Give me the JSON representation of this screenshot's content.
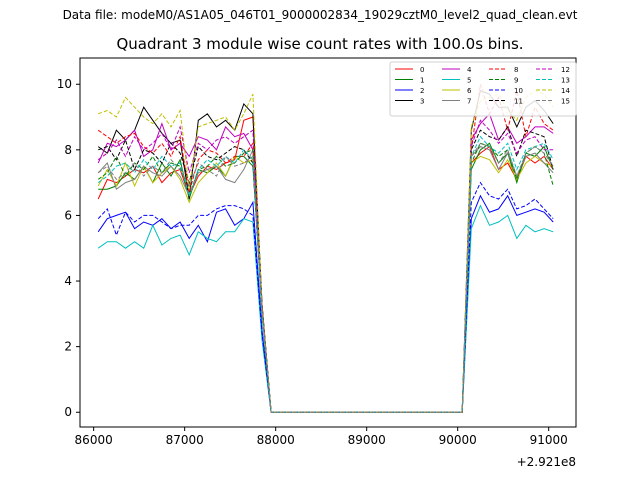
{
  "suptitle": "Data file: modeM0/AS1A05_046T01_9000002834_19029cztM0_level2_quad_clean.evt",
  "chart_data": {
    "type": "line",
    "title": "Quadrant 3 module wise count rates with 100.0s bins.",
    "xlabel": "",
    "ylabel": "",
    "x_offset_label": "+2.921e8",
    "xlim": [
      85850,
      91300
    ],
    "ylim": [
      -0.45,
      10.8
    ],
    "x_ticks": [
      86000,
      87000,
      88000,
      89000,
      90000,
      91000
    ],
    "x_tick_labels": [
      "86000",
      "87000",
      "88000",
      "89000",
      "90000",
      "91000"
    ],
    "y_ticks": [
      0,
      2,
      4,
      6,
      8,
      10
    ],
    "y_tick_labels": [
      "0",
      "2",
      "4",
      "6",
      "8",
      "10"
    ],
    "grid": false,
    "legend_position": "top-right",
    "x": [
      86050,
      86150,
      86250,
      86350,
      86450,
      86550,
      86650,
      86750,
      86850,
      86950,
      87050,
      87150,
      87250,
      87350,
      87450,
      87550,
      87650,
      87750,
      87850,
      87950,
      88050,
      88150,
      88250,
      88350,
      88450,
      88550,
      88650,
      88750,
      88850,
      88950,
      89050,
      89150,
      89250,
      89350,
      89450,
      89550,
      89650,
      89750,
      89850,
      89950,
      90050,
      90150,
      90250,
      90350,
      90450,
      90550,
      90650,
      90750,
      90850,
      90950,
      91050
    ],
    "series": [
      {
        "name": "0",
        "color": "#ff0000",
        "dashed": false,
        "values": [
          6.5,
          7.1,
          7.0,
          7.2,
          7.4,
          7.3,
          7.5,
          7.0,
          7.3,
          7.4,
          6.6,
          7.2,
          7.5,
          7.4,
          7.6,
          7.7,
          8.9,
          9.0,
          3.3,
          0.0,
          0.0,
          0.0,
          0.0,
          0.0,
          0.0,
          0.0,
          0.0,
          0.0,
          0.0,
          0.0,
          0.0,
          0.0,
          0.0,
          0.0,
          0.0,
          0.0,
          0.0,
          0.0,
          0.0,
          0.0,
          0.0,
          7.6,
          7.9,
          8.1,
          7.4,
          7.6,
          7.1,
          7.8,
          7.6,
          7.8,
          7.4
        ]
      },
      {
        "name": "1",
        "color": "#008000",
        "dashed": false,
        "values": [
          6.8,
          6.8,
          6.9,
          7.3,
          7.1,
          7.5,
          7.0,
          7.6,
          7.2,
          7.7,
          6.5,
          7.4,
          7.3,
          7.5,
          7.2,
          7.8,
          7.8,
          7.5,
          3.2,
          0.0,
          0.0,
          0.0,
          0.0,
          0.0,
          0.0,
          0.0,
          0.0,
          0.0,
          0.0,
          0.0,
          0.0,
          0.0,
          0.0,
          0.0,
          0.0,
          0.0,
          0.0,
          0.0,
          0.0,
          0.0,
          0.0,
          7.4,
          8.0,
          8.2,
          7.6,
          7.9,
          7.0,
          7.9,
          7.8,
          8.1,
          7.4
        ]
      },
      {
        "name": "2",
        "color": "#0000ff",
        "dashed": false,
        "values": [
          5.5,
          5.9,
          6.0,
          6.1,
          5.6,
          5.8,
          5.7,
          5.9,
          5.6,
          5.8,
          5.3,
          5.7,
          5.2,
          6.1,
          6.2,
          5.7,
          5.9,
          6.4,
          2.5,
          0.0,
          0.0,
          0.0,
          0.0,
          0.0,
          0.0,
          0.0,
          0.0,
          0.0,
          0.0,
          0.0,
          0.0,
          0.0,
          0.0,
          0.0,
          0.0,
          0.0,
          0.0,
          0.0,
          0.0,
          0.0,
          0.0,
          5.9,
          6.6,
          6.1,
          6.2,
          6.6,
          6.0,
          6.1,
          6.2,
          6.1,
          5.8
        ]
      },
      {
        "name": "3",
        "color": "#000000",
        "dashed": false,
        "values": [
          8.1,
          7.9,
          8.6,
          8.3,
          8.6,
          9.3,
          8.9,
          8.5,
          8.2,
          8.3,
          6.5,
          8.9,
          9.1,
          8.7,
          8.9,
          8.6,
          9.4,
          9.1,
          3.3,
          0.0,
          0.0,
          0.0,
          0.0,
          0.0,
          0.0,
          0.0,
          0.0,
          0.0,
          0.0,
          0.0,
          0.0,
          0.0,
          0.0,
          0.0,
          0.0,
          0.0,
          0.0,
          0.0,
          0.0,
          0.0,
          0.0,
          8.6,
          9.8,
          9.7,
          9.3,
          9.3,
          8.7,
          9.3,
          9.5,
          9.2,
          8.8
        ]
      },
      {
        "name": "4",
        "color": "#bf00bf",
        "dashed": false,
        "values": [
          7.6,
          8.2,
          8.1,
          8.3,
          8.6,
          7.8,
          8.0,
          8.8,
          8.0,
          8.2,
          7.8,
          8.4,
          8.3,
          8.0,
          8.7,
          8.4,
          8.5,
          8.0,
          3.1,
          0.0,
          0.0,
          0.0,
          0.0,
          0.0,
          0.0,
          0.0,
          0.0,
          0.0,
          0.0,
          0.0,
          0.0,
          0.0,
          0.0,
          0.0,
          0.0,
          0.0,
          0.0,
          0.0,
          0.0,
          0.0,
          0.0,
          8.3,
          8.8,
          9.1,
          8.3,
          8.7,
          8.2,
          8.4,
          8.7,
          8.7,
          8.5
        ]
      },
      {
        "name": "5",
        "color": "#00bfbf",
        "dashed": false,
        "values": [
          5.0,
          5.2,
          5.2,
          5.0,
          5.2,
          5.0,
          5.7,
          5.1,
          5.3,
          5.4,
          4.8,
          5.5,
          5.3,
          5.2,
          5.5,
          5.5,
          5.9,
          5.8,
          2.2,
          0.0,
          0.0,
          0.0,
          0.0,
          0.0,
          0.0,
          0.0,
          0.0,
          0.0,
          0.0,
          0.0,
          0.0,
          0.0,
          0.0,
          0.0,
          0.0,
          0.0,
          0.0,
          0.0,
          0.0,
          0.0,
          0.0,
          5.6,
          6.3,
          5.7,
          5.8,
          6.0,
          5.3,
          5.7,
          5.5,
          5.6,
          5.5
        ]
      },
      {
        "name": "6",
        "color": "#bfbf00",
        "dashed": false,
        "values": [
          6.9,
          7.4,
          6.9,
          7.6,
          6.9,
          7.5,
          7.0,
          7.3,
          7.5,
          7.1,
          6.4,
          7.0,
          7.3,
          7.6,
          7.2,
          7.8,
          7.6,
          7.7,
          3.0,
          0.0,
          0.0,
          0.0,
          0.0,
          0.0,
          0.0,
          0.0,
          0.0,
          0.0,
          0.0,
          0.0,
          0.0,
          0.0,
          0.0,
          0.0,
          0.0,
          0.0,
          0.0,
          0.0,
          0.0,
          0.0,
          0.0,
          7.6,
          7.8,
          7.7,
          7.3,
          7.7,
          7.1,
          7.6,
          7.8,
          7.6,
          7.5
        ]
      },
      {
        "name": "7",
        "color": "#808080",
        "dashed": false,
        "values": [
          7.3,
          7.6,
          6.8,
          7.0,
          7.1,
          7.5,
          7.3,
          7.2,
          7.5,
          7.2,
          6.6,
          7.3,
          7.4,
          7.5,
          7.1,
          7.0,
          7.4,
          8.0,
          3.1,
          0.0,
          0.0,
          0.0,
          0.0,
          0.0,
          0.0,
          0.0,
          0.0,
          0.0,
          0.0,
          0.0,
          0.0,
          0.0,
          0.0,
          0.0,
          0.0,
          0.0,
          0.0,
          0.0,
          0.0,
          0.0,
          0.0,
          7.8,
          8.1,
          8.0,
          7.4,
          7.9,
          7.2,
          7.8,
          7.9,
          7.6,
          7.3
        ]
      },
      {
        "name": "8",
        "color": "#ff0000",
        "dashed": true,
        "values": [
          8.6,
          8.4,
          8.2,
          8.4,
          8.5,
          8.1,
          7.9,
          8.2,
          7.8,
          8.4,
          6.7,
          7.7,
          8.0,
          7.9,
          7.6,
          7.8,
          7.8,
          8.2,
          3.2,
          0.0,
          0.0,
          0.0,
          0.0,
          0.0,
          0.0,
          0.0,
          0.0,
          0.0,
          0.0,
          0.0,
          0.0,
          0.0,
          0.0,
          0.0,
          0.0,
          0.0,
          0.0,
          0.0,
          0.0,
          0.0,
          0.0,
          8.0,
          10.0,
          9.1,
          9.6,
          8.6,
          9.8,
          8.4,
          9.3,
          8.8,
          8.6
        ]
      },
      {
        "name": "9",
        "color": "#008000",
        "dashed": true,
        "values": [
          7.1,
          7.3,
          7.8,
          7.2,
          7.6,
          7.4,
          7.8,
          7.3,
          7.6,
          7.5,
          6.6,
          7.4,
          7.5,
          7.8,
          7.5,
          7.6,
          7.9,
          8.0,
          3.2,
          0.0,
          0.0,
          0.0,
          0.0,
          0.0,
          0.0,
          0.0,
          0.0,
          0.0,
          0.0,
          0.0,
          0.0,
          0.0,
          0.0,
          0.0,
          0.0,
          0.0,
          0.0,
          0.0,
          0.0,
          0.0,
          0.0,
          7.6,
          8.2,
          8.1,
          7.8,
          8.0,
          7.1,
          7.9,
          8.1,
          7.9,
          6.9
        ]
      },
      {
        "name": "10",
        "color": "#0000ff",
        "dashed": true,
        "values": [
          5.9,
          6.2,
          5.4,
          6.1,
          5.8,
          6.0,
          6.0,
          5.8,
          5.6,
          5.7,
          5.7,
          6.0,
          6.0,
          6.2,
          6.3,
          6.3,
          6.2,
          6.0,
          2.4,
          0.0,
          0.0,
          0.0,
          0.0,
          0.0,
          0.0,
          0.0,
          0.0,
          0.0,
          0.0,
          0.0,
          0.0,
          0.0,
          0.0,
          0.0,
          0.0,
          0.0,
          0.0,
          0.0,
          0.0,
          0.0,
          0.0,
          6.4,
          7.0,
          6.6,
          6.5,
          6.8,
          6.2,
          6.3,
          6.5,
          6.2,
          5.9
        ]
      },
      {
        "name": "11",
        "color": "#000000",
        "dashed": true,
        "values": [
          8.0,
          8.1,
          7.7,
          8.3,
          7.4,
          8.0,
          7.9,
          7.6,
          8.2,
          7.9,
          7.0,
          8.1,
          7.8,
          7.7,
          7.9,
          8.1,
          8.0,
          7.6,
          3.0,
          0.0,
          0.0,
          0.0,
          0.0,
          0.0,
          0.0,
          0.0,
          0.0,
          0.0,
          0.0,
          0.0,
          0.0,
          0.0,
          0.0,
          0.0,
          0.0,
          0.0,
          0.0,
          0.0,
          0.0,
          0.0,
          0.0,
          8.0,
          8.6,
          8.4,
          8.3,
          8.7,
          7.8,
          8.6,
          8.5,
          8.4,
          7.4
        ]
      },
      {
        "name": "12",
        "color": "#bf00bf",
        "dashed": true,
        "values": [
          7.7,
          7.9,
          8.3,
          7.8,
          8.4,
          8.0,
          8.2,
          8.5,
          8.0,
          8.7,
          7.3,
          8.2,
          8.0,
          8.3,
          8.4,
          8.2,
          8.4,
          8.6,
          3.2,
          0.0,
          0.0,
          0.0,
          0.0,
          0.0,
          0.0,
          0.0,
          0.0,
          0.0,
          0.0,
          0.0,
          0.0,
          0.0,
          0.0,
          0.0,
          0.0,
          0.0,
          0.0,
          0.0,
          0.0,
          0.0,
          0.0,
          8.1,
          8.9,
          8.6,
          8.2,
          8.5,
          7.9,
          8.3,
          8.4,
          8.0,
          8.0
        ]
      },
      {
        "name": "13",
        "color": "#00bfbf",
        "dashed": true,
        "values": [
          7.0,
          7.2,
          7.5,
          7.6,
          7.3,
          7.7,
          7.4,
          7.8,
          7.5,
          7.6,
          6.6,
          7.4,
          7.7,
          7.5,
          7.8,
          7.6,
          8.0,
          7.7,
          3.0,
          0.0,
          0.0,
          0.0,
          0.0,
          0.0,
          0.0,
          0.0,
          0.0,
          0.0,
          0.0,
          0.0,
          0.0,
          0.0,
          0.0,
          0.0,
          0.0,
          0.0,
          0.0,
          0.0,
          0.0,
          0.0,
          0.0,
          7.8,
          8.4,
          8.1,
          7.9,
          8.2,
          7.4,
          8.0,
          8.1,
          8.2,
          7.7
        ]
      },
      {
        "name": "14",
        "color": "#bfbf00",
        "dashed": true,
        "values": [
          9.1,
          9.2,
          9.0,
          9.6,
          9.3,
          9.0,
          8.8,
          9.1,
          8.7,
          9.2,
          6.8,
          8.7,
          8.8,
          8.9,
          9.0,
          8.6,
          9.1,
          9.7,
          3.2,
          0.0,
          0.0,
          0.0,
          0.0,
          0.0,
          0.0,
          0.0,
          0.0,
          0.0,
          0.0,
          0.0,
          0.0,
          0.0,
          0.0,
          0.0,
          0.0,
          0.0,
          0.0,
          0.0,
          0.0,
          0.0,
          0.0,
          8.7,
          9.5,
          9.6,
          9.7,
          9.2,
          8.9,
          9.6,
          9.8,
          9.7,
          9.3
        ]
      },
      {
        "name": "15",
        "color": "#808080",
        "dashed": true,
        "values": [
          7.3,
          7.5,
          7.1,
          7.3,
          7.6,
          7.2,
          7.5,
          7.3,
          7.7,
          7.4,
          6.9,
          7.6,
          7.4,
          7.2,
          7.8,
          7.5,
          7.6,
          7.8,
          3.1,
          0.0,
          0.0,
          0.0,
          0.0,
          0.0,
          0.0,
          0.0,
          0.0,
          0.0,
          0.0,
          0.0,
          0.0,
          0.0,
          0.0,
          0.0,
          0.0,
          0.0,
          0.0,
          0.0,
          0.0,
          0.0,
          0.0,
          7.8,
          8.2,
          8.1,
          7.6,
          8.0,
          7.2,
          7.9,
          8.1,
          7.9,
          7.5
        ]
      }
    ]
  }
}
